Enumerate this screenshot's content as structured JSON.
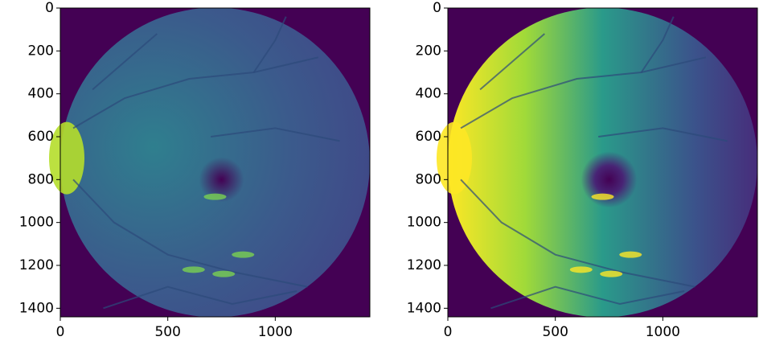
{
  "chart_data": [
    {
      "type": "image",
      "xlim": [
        0,
        1440
      ],
      "ylim": [
        1440,
        0
      ],
      "xticks": [
        0,
        500,
        1000
      ],
      "yticks": [
        0,
        200,
        400,
        600,
        800,
        1000,
        1200,
        1400
      ]
    },
    {
      "type": "image",
      "xlim": [
        0,
        1440
      ],
      "ylim": [
        1440,
        0
      ],
      "xticks": [
        0,
        500,
        1000
      ],
      "yticks": [
        0,
        200,
        400,
        600,
        800,
        1000,
        1200,
        1400
      ]
    }
  ]
}
